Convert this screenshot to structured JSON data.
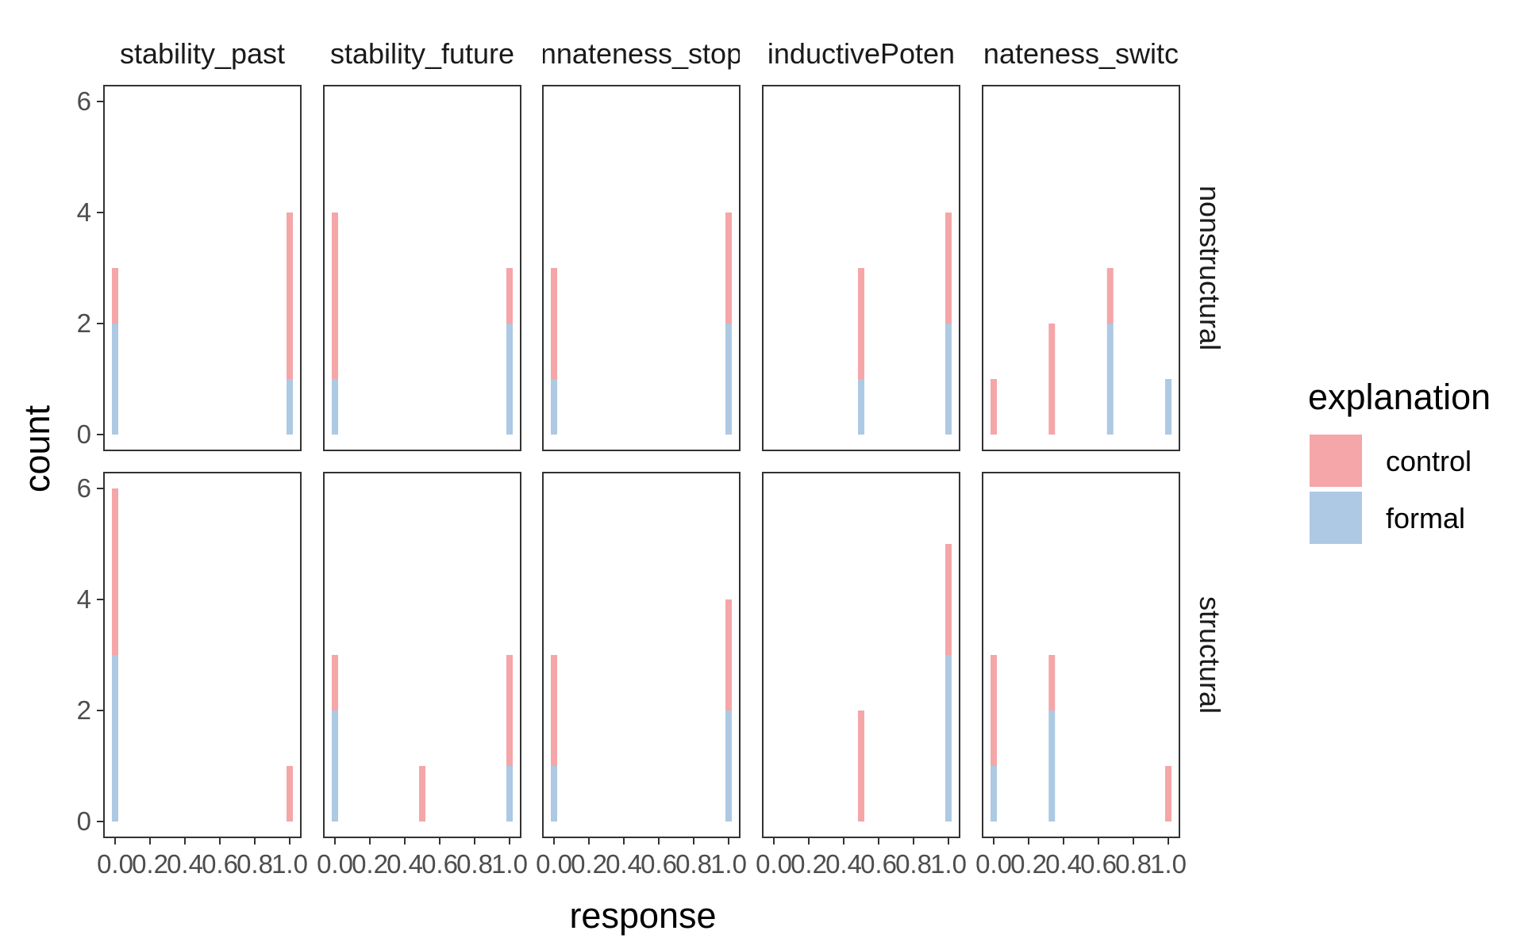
{
  "chart_data": {
    "type": "bar",
    "stacked": true,
    "facet_cols": [
      "stability_past",
      "stability_future",
      "nnateness_stop",
      "inductivePoten",
      "nnateness_switch"
    ],
    "facet_rows": [
      "nonstructural",
      "structural"
    ],
    "xlabel": "response",
    "ylabel": "count",
    "xlim": [
      0,
      1
    ],
    "ylim": [
      0,
      6
    ],
    "x_ticks": [
      0.0,
      0.2,
      0.4,
      0.6,
      0.8,
      1.0
    ],
    "x_tick_labels": [
      "0.0",
      "0.2",
      "0.4",
      "0.6",
      "0.8",
      "1.0"
    ],
    "y_ticks": [
      0,
      2,
      4,
      6
    ],
    "y_tick_labels": [
      "0",
      "2",
      "4",
      "6"
    ],
    "grid": false,
    "legend": {
      "title": "explanation",
      "position": "right",
      "entries": [
        {
          "name": "control",
          "color": "#f4a6a8"
        },
        {
          "name": "formal",
          "color": "#adc9e3"
        }
      ]
    },
    "panels": [
      {
        "row": "nonstructural",
        "col": "stability_past",
        "bars": [
          {
            "x": 0.0,
            "formal": 2,
            "control": 1
          },
          {
            "x": 1.0,
            "formal": 1,
            "control": 3
          }
        ]
      },
      {
        "row": "nonstructural",
        "col": "stability_future",
        "bars": [
          {
            "x": 0.0,
            "formal": 1,
            "control": 3
          },
          {
            "x": 1.0,
            "formal": 2,
            "control": 1
          }
        ]
      },
      {
        "row": "nonstructural",
        "col": "nnateness_stop",
        "bars": [
          {
            "x": 0.0,
            "formal": 1,
            "control": 2
          },
          {
            "x": 1.0,
            "formal": 2,
            "control": 2
          }
        ]
      },
      {
        "row": "nonstructural",
        "col": "inductivePoten",
        "bars": [
          {
            "x": 0.5,
            "formal": 1,
            "control": 2
          },
          {
            "x": 1.0,
            "formal": 2,
            "control": 2
          }
        ]
      },
      {
        "row": "nonstructural",
        "col": "nnateness_switch",
        "bars": [
          {
            "x": 0.0,
            "formal": 0,
            "control": 1
          },
          {
            "x": 0.333,
            "formal": 0,
            "control": 2
          },
          {
            "x": 0.667,
            "formal": 2,
            "control": 1
          },
          {
            "x": 1.0,
            "formal": 1,
            "control": 0
          }
        ]
      },
      {
        "row": "structural",
        "col": "stability_past",
        "bars": [
          {
            "x": 0.0,
            "formal": 3,
            "control": 3
          },
          {
            "x": 1.0,
            "formal": 0,
            "control": 1
          }
        ]
      },
      {
        "row": "structural",
        "col": "stability_future",
        "bars": [
          {
            "x": 0.0,
            "formal": 2,
            "control": 1
          },
          {
            "x": 0.5,
            "formal": 0,
            "control": 1
          },
          {
            "x": 1.0,
            "formal": 1,
            "control": 2
          }
        ]
      },
      {
        "row": "structural",
        "col": "nnateness_stop",
        "bars": [
          {
            "x": 0.0,
            "formal": 1,
            "control": 2
          },
          {
            "x": 1.0,
            "formal": 2,
            "control": 2
          }
        ]
      },
      {
        "row": "structural",
        "col": "inductivePoten",
        "bars": [
          {
            "x": 0.5,
            "formal": 0,
            "control": 2
          },
          {
            "x": 1.0,
            "formal": 3,
            "control": 2
          }
        ]
      },
      {
        "row": "structural",
        "col": "nnateness_switch",
        "bars": [
          {
            "x": 0.0,
            "formal": 1,
            "control": 2
          },
          {
            "x": 0.333,
            "formal": 2,
            "control": 1
          },
          {
            "x": 1.0,
            "formal": 0,
            "control": 1
          }
        ]
      }
    ]
  }
}
